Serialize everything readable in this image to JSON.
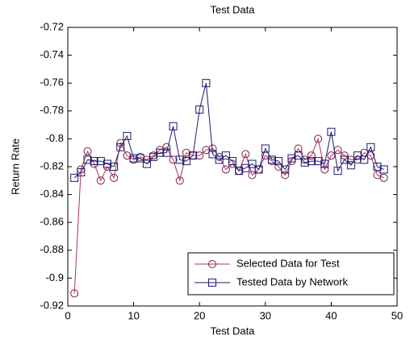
{
  "chart_data": {
    "type": "line",
    "title": "Test Data",
    "x_label": "Test Data",
    "y_label": "Return Rate",
    "x": [
      1,
      2,
      3,
      4,
      5,
      6,
      7,
      8,
      9,
      10,
      11,
      12,
      13,
      14,
      15,
      16,
      17,
      18,
      19,
      20,
      21,
      22,
      23,
      24,
      25,
      26,
      27,
      28,
      29,
      30,
      31,
      32,
      33,
      34,
      35,
      36,
      37,
      38,
      39,
      40,
      41,
      42,
      43,
      44,
      45,
      46,
      47,
      48
    ],
    "series": [
      {
        "name": "Selected Data for Test",
        "color": "#b03060",
        "marker": "circle",
        "values": [
          -0.911,
          -0.822,
          -0.809,
          -0.818,
          -0.83,
          -0.82,
          -0.828,
          -0.803,
          -0.812,
          -0.815,
          -0.813,
          -0.815,
          -0.812,
          -0.808,
          -0.806,
          -0.815,
          -0.83,
          -0.81,
          -0.812,
          -0.812,
          -0.808,
          -0.807,
          -0.813,
          -0.822,
          -0.818,
          -0.823,
          -0.811,
          -0.826,
          -0.822,
          -0.812,
          -0.816,
          -0.82,
          -0.826,
          -0.816,
          -0.807,
          -0.815,
          -0.812,
          -0.8,
          -0.822,
          -0.812,
          -0.808,
          -0.812,
          -0.815,
          -0.815,
          -0.81,
          -0.812,
          -0.826,
          -0.828
        ]
      },
      {
        "name": "Tested Data by Network",
        "color": "#1a1a6e",
        "marker": "square",
        "values": [
          -0.828,
          -0.824,
          -0.815,
          -0.816,
          -0.816,
          -0.818,
          -0.82,
          -0.806,
          -0.798,
          -0.814,
          -0.814,
          -0.818,
          -0.813,
          -0.81,
          -0.81,
          -0.791,
          -0.815,
          -0.816,
          -0.812,
          -0.779,
          -0.76,
          -0.811,
          -0.815,
          -0.812,
          -0.816,
          -0.823,
          -0.821,
          -0.818,
          -0.822,
          -0.807,
          -0.815,
          -0.816,
          -0.822,
          -0.814,
          -0.812,
          -0.817,
          -0.816,
          -0.816,
          -0.818,
          -0.795,
          -0.823,
          -0.815,
          -0.819,
          -0.812,
          -0.815,
          -0.806,
          -0.82,
          -0.822
        ]
      }
    ],
    "xlim": [
      0,
      50
    ],
    "xticks": [
      0,
      10,
      20,
      30,
      40,
      50
    ],
    "ylim": [
      -0.92,
      -0.72
    ],
    "yticks": [
      -0.92,
      -0.9,
      -0.88,
      -0.86,
      -0.84,
      -0.82,
      -0.8,
      -0.78,
      -0.76,
      -0.74,
      -0.72
    ],
    "grid": false,
    "legend": "lower right"
  }
}
